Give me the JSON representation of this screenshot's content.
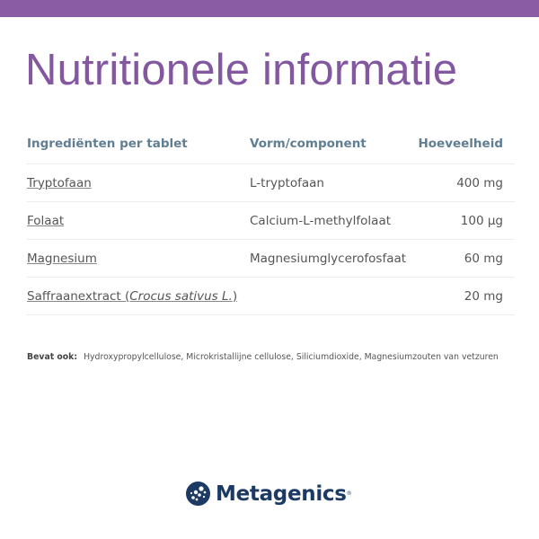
{
  "colors": {
    "accent": "#8a5ca3",
    "title": "#8458a0",
    "header_text": "#607e94",
    "brand": "#1c3a63"
  },
  "title": "Nutritionele informatie",
  "table": {
    "headers": [
      "Ingrediënten per tablet",
      "Vorm/component",
      "Hoeveelheid"
    ],
    "rows": [
      {
        "ingredient": "Tryptofaan",
        "form": "L-tryptofaan",
        "amount": "400 mg"
      },
      {
        "ingredient": "Folaat",
        "form": "Calcium-L-methylfolaat",
        "amount": "100 µg"
      },
      {
        "ingredient": "Magnesium",
        "form": "Magnesiumglycerofosfaat",
        "amount": "60 mg"
      },
      {
        "ingredient": "Saffraanextract (",
        "ingredient_latin": "Crocus sativus L.",
        "ingredient_end": ")",
        "form": "",
        "amount": "20 mg"
      }
    ]
  },
  "note": {
    "label": "Bevat ook:",
    "text": "Hydroxypropylcellulose, Microkristallijne cellulose, Siliciumdioxide, Magnesiumzouten van vetzuren"
  },
  "logo": {
    "text": "Metagenics",
    "mark": "®",
    "icon": "molecule-circle-icon"
  }
}
